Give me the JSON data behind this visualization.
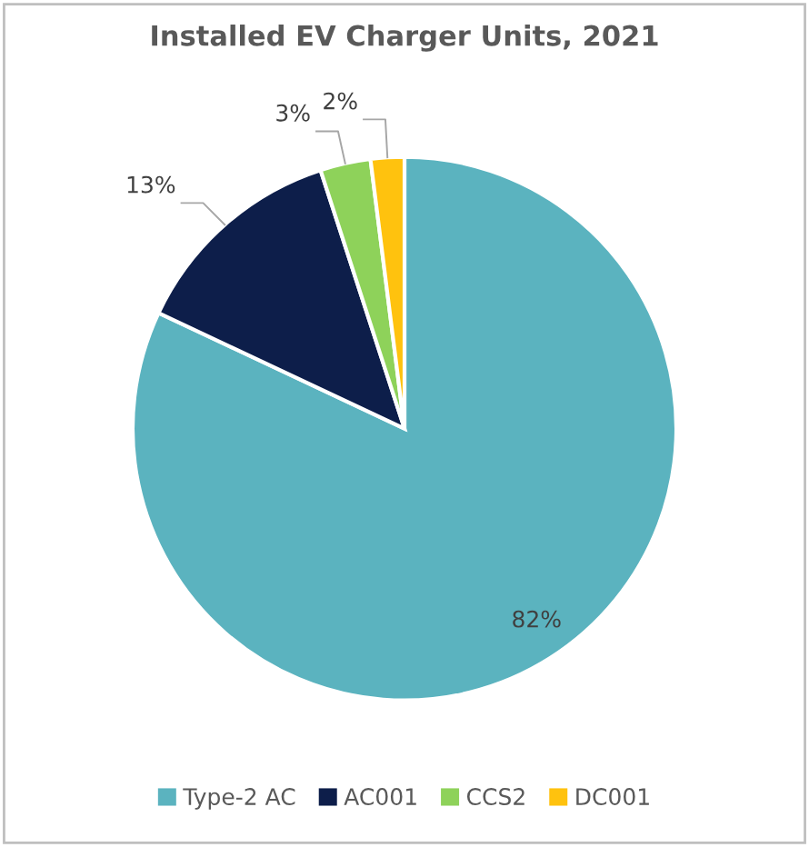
{
  "chart_data": {
    "type": "pie",
    "title": "Installed EV Charger Units, 2021",
    "categories": [
      "Type-2 AC",
      "AC001",
      "CCS2",
      "DC001"
    ],
    "values": [
      82,
      13,
      3,
      2
    ],
    "colors": [
      "#5bb3bf",
      "#0d1e4a",
      "#8ed25a",
      "#ffc20e"
    ],
    "value_labels": [
      "82%",
      "13%",
      "3%",
      "2%"
    ],
    "legend": "bottom"
  }
}
